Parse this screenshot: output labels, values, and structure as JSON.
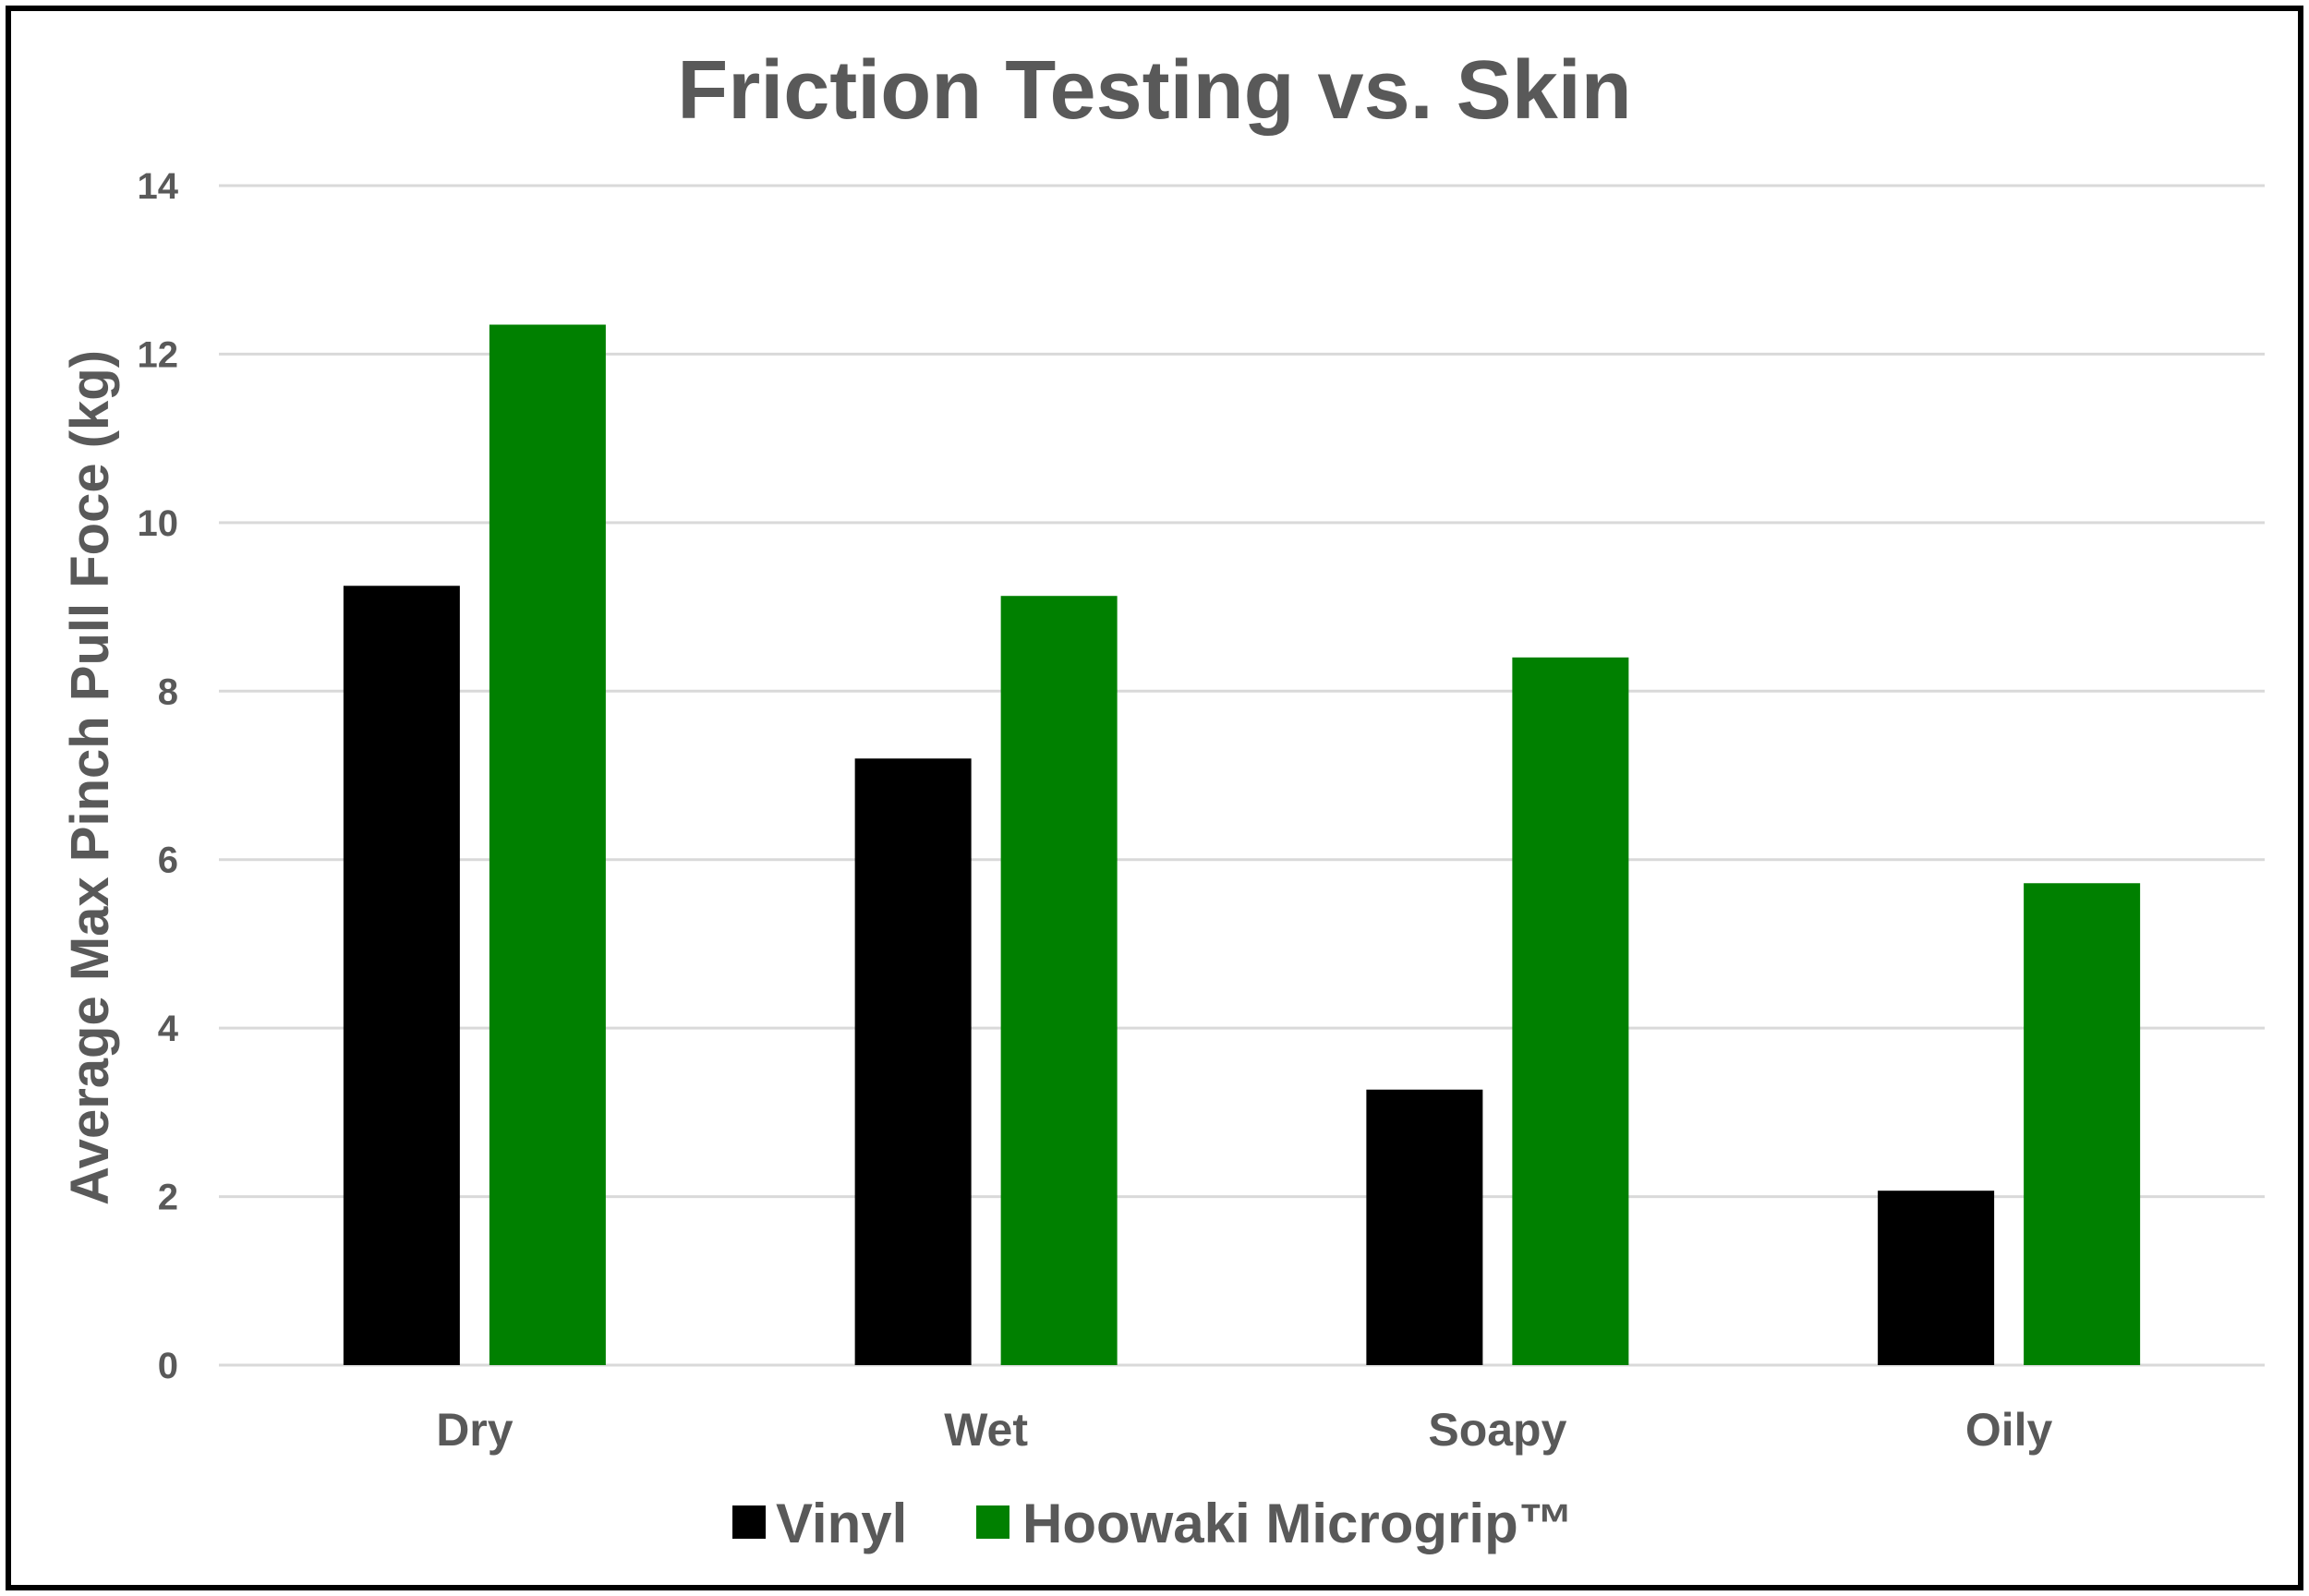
{
  "chart_data": {
    "type": "bar",
    "title": "Friction Testing vs. Skin",
    "xlabel": "",
    "ylabel": "Average Max Pinch Pull Foce (kg)",
    "categories": [
      "Dry",
      "Wet",
      "Soapy",
      "Oily"
    ],
    "series": [
      {
        "name": "Vinyl",
        "color": "#000000",
        "values": [
          9.25,
          7.2,
          3.27,
          2.07
        ]
      },
      {
        "name": "Hoowaki Microgrip™",
        "color": "#008000",
        "values": [
          12.35,
          9.13,
          8.4,
          5.72
        ]
      }
    ],
    "ylim": [
      0,
      14
    ],
    "yticks": [
      "0",
      "2",
      "4",
      "6",
      "8",
      "10",
      "12",
      "14"
    ],
    "grid": true,
    "legend_position": "bottom"
  }
}
